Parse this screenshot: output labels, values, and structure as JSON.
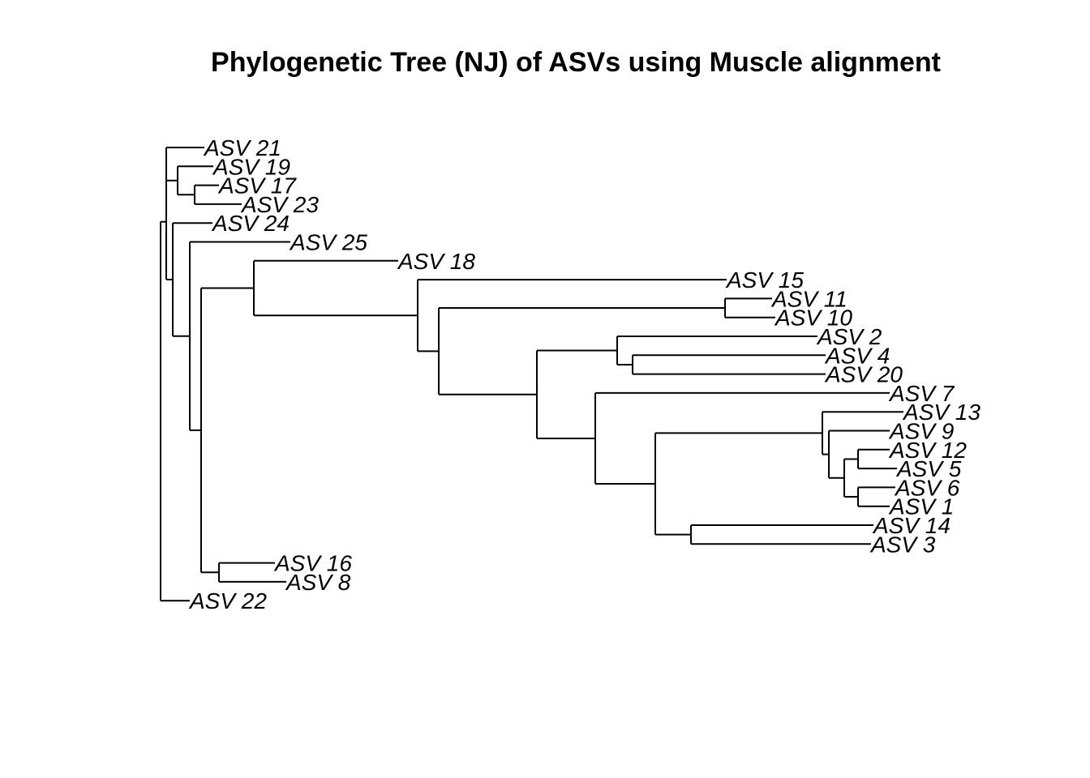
{
  "title": "Phylogenetic Tree (NJ) of ASVs using Muscle alignment",
  "tree": {
    "method": "NJ",
    "layout": "rectangular",
    "line_color": "#000000",
    "root": {
      "children": [
        {
          "children": [
            {
              "children": [
                {
                  "name": "ASV 21"
                },
                {
                  "children": [
                    {
                      "name": "ASV 19"
                    },
                    {
                      "children": [
                        {
                          "name": "ASV 17"
                        },
                        {
                          "name": "ASV 23"
                        }
                      ]
                    }
                  ]
                }
              ]
            },
            {
              "children": [
                {
                  "name": "ASV 24"
                },
                {
                  "children": [
                    {
                      "name": "ASV 25"
                    },
                    {
                      "children": [
                        {
                          "children": [
                            {
                              "name": "ASV 18"
                            },
                            {
                              "children": [
                                {
                                  "name": "ASV 15"
                                },
                                {
                                  "children": [
                                    {
                                      "children": [
                                        {
                                          "name": "ASV 11"
                                        },
                                        {
                                          "name": "ASV 10"
                                        }
                                      ]
                                    },
                                    {
                                      "children": [
                                        {
                                          "children": [
                                            {
                                              "name": "ASV 2"
                                            },
                                            {
                                              "children": [
                                                {
                                                  "name": "ASV 4"
                                                },
                                                {
                                                  "name": "ASV 20"
                                                }
                                              ]
                                            }
                                          ]
                                        },
                                        {
                                          "children": [
                                            {
                                              "name": "ASV 7"
                                            },
                                            {
                                              "children": [
                                                {
                                                  "children": [
                                                    {
                                                      "name": "ASV 13"
                                                    },
                                                    {
                                                      "children": [
                                                        {
                                                          "name": "ASV 9"
                                                        },
                                                        {
                                                          "children": [
                                                            {
                                                              "children": [
                                                                {
                                                                  "name": "ASV 12"
                                                                },
                                                                {
                                                                  "name": "ASV 5"
                                                                }
                                                              ]
                                                            },
                                                            {
                                                              "children": [
                                                                {
                                                                  "name": "ASV 6"
                                                                },
                                                                {
                                                                  "name": "ASV 1"
                                                                }
                                                              ]
                                                            }
                                                          ]
                                                        }
                                                      ]
                                                    }
                                                  ]
                                                },
                                                {
                                                  "children": [
                                                    {
                                                      "name": "ASV 14"
                                                    },
                                                    {
                                                      "name": "ASV 3"
                                                    }
                                                  ]
                                                }
                                              ]
                                            }
                                          ]
                                        }
                                      ]
                                    }
                                  ]
                                }
                              ]
                            }
                          ]
                        },
                        {
                          "children": [
                            {
                              "name": "ASV 16"
                            },
                            {
                              "name": "ASV 8"
                            }
                          ]
                        }
                      ]
                    }
                  ]
                }
              ]
            }
          ]
        },
        {
          "name": "ASV 22"
        }
      ]
    }
  }
}
